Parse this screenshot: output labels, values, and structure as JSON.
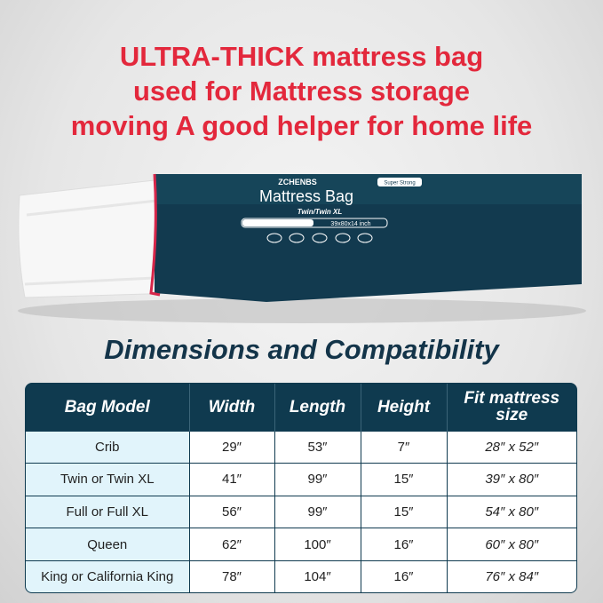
{
  "headline": [
    "ULTRA-THICK mattress bag",
    "used for Mattress storage",
    "moving A good helper for home life"
  ],
  "product": {
    "brand": "ZCHENBS",
    "title": "Mattress Bag",
    "size": "Twin/Twin XL",
    "dimensions": "39x80x14 inch",
    "badge": "Super Strong"
  },
  "subtitle": "Dimensions and Compatibility",
  "table": {
    "headers": [
      "Bag Model",
      "Width",
      "Length",
      "Height",
      "Fit mattress size"
    ],
    "rows": [
      [
        "Crib",
        "29″",
        "53″",
        "7″",
        "28″ x 52″"
      ],
      [
        "Twin or Twin XL",
        "41″",
        "99″",
        "15″",
        "39″ x 80″"
      ],
      [
        "Full or Full XL",
        "56″",
        "99″",
        "15″",
        "54″ x 80″"
      ],
      [
        "Queen",
        "62″",
        "100″",
        "16″",
        "60″ x 80″"
      ],
      [
        "King or California King",
        "78″",
        "104″",
        "16″",
        "76″ x 84″"
      ]
    ]
  },
  "colors": {
    "accent": "#e3283c",
    "navy": "#0f3a4f",
    "light_cell": "#e1f4fb"
  }
}
